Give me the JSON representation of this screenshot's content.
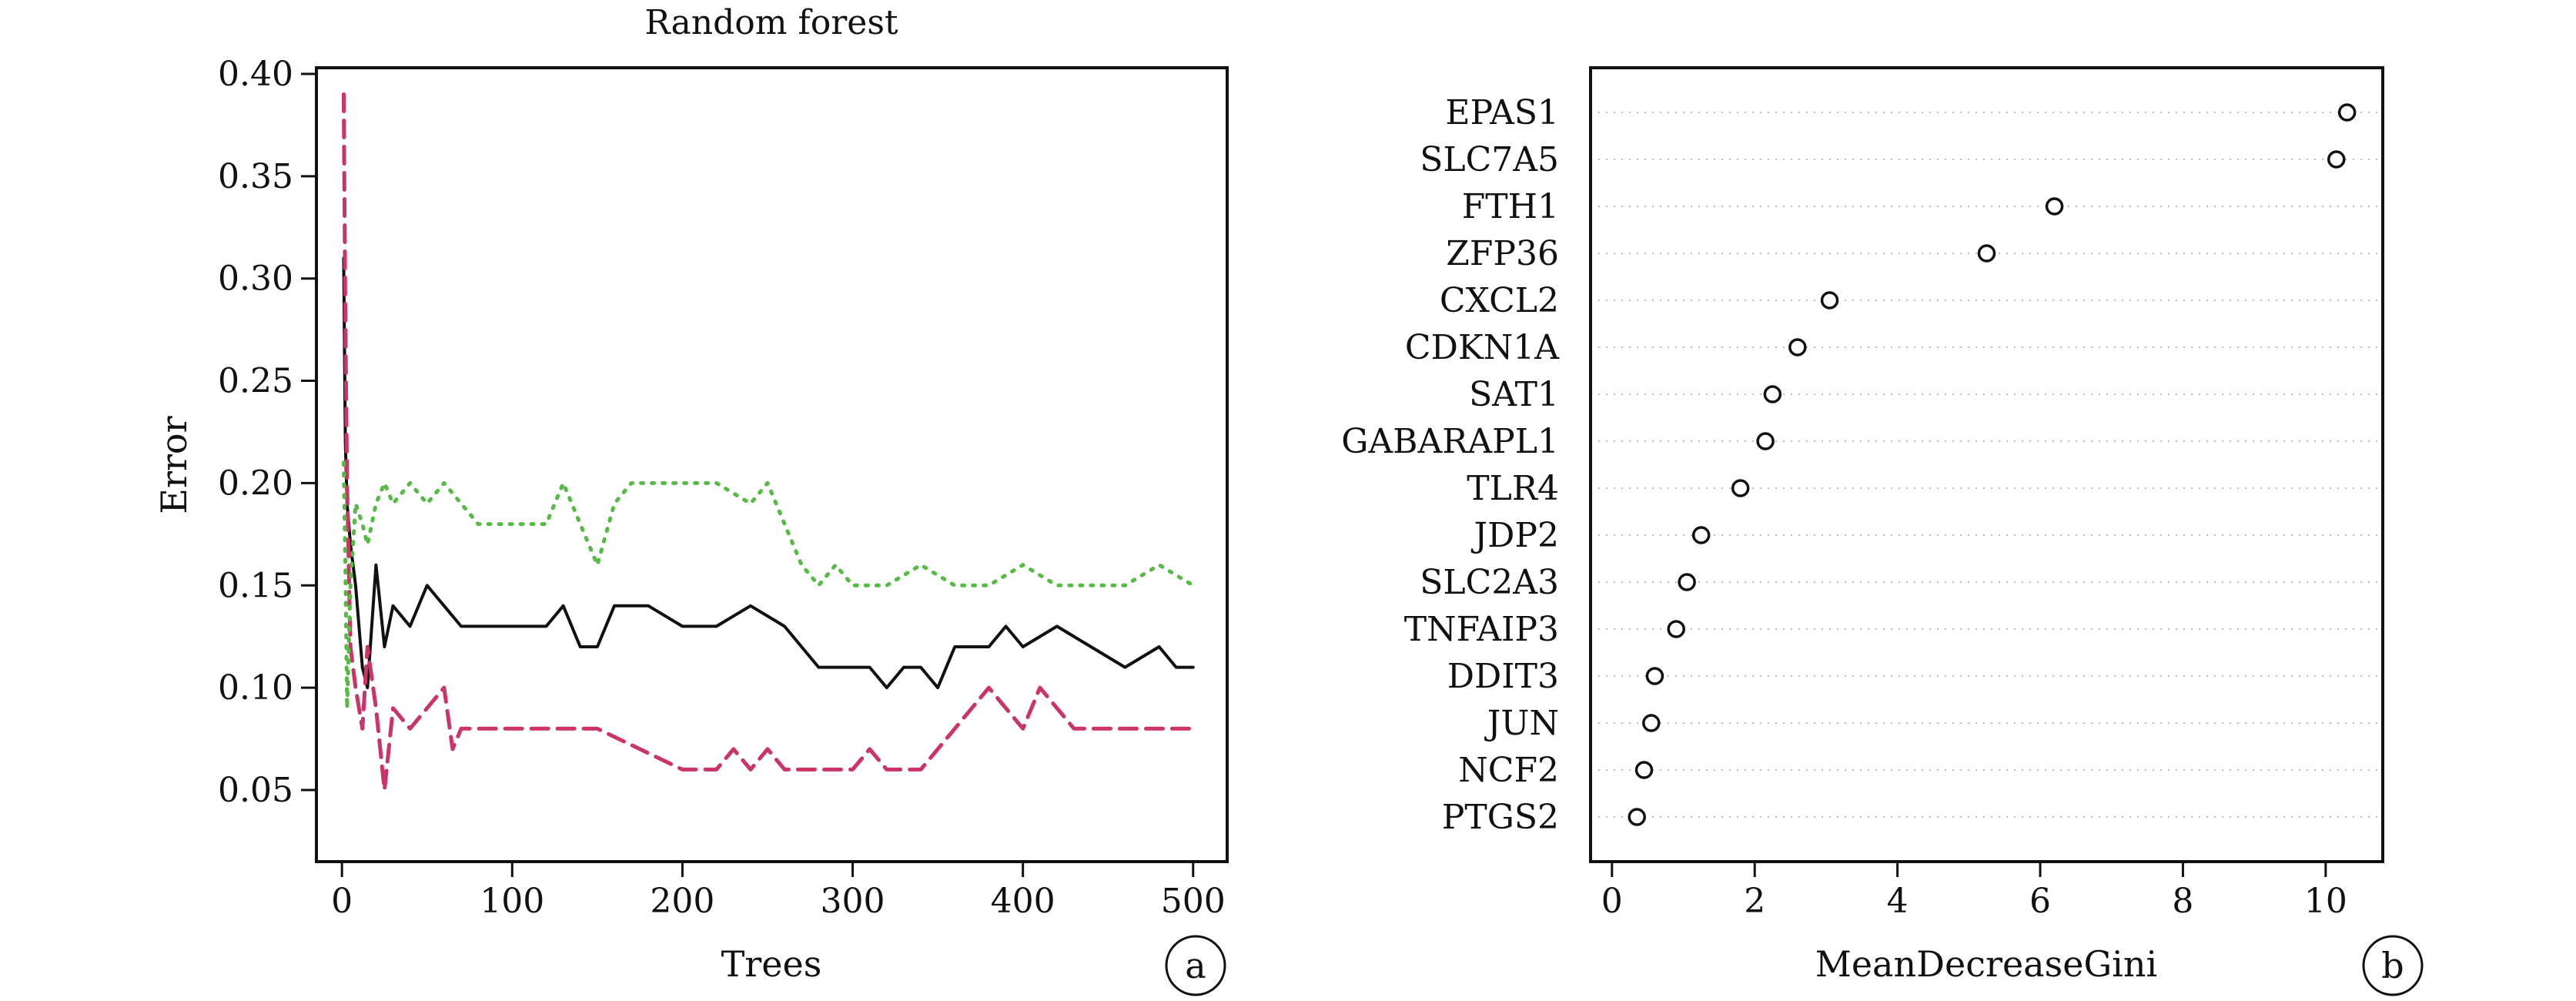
{
  "chart_data": [
    {
      "type": "line",
      "panel_label": "a",
      "title": "Random forest",
      "xlabel": "Trees",
      "ylabel": "Error",
      "xlim": [
        -15,
        520
      ],
      "ylim": [
        0.015,
        0.403
      ],
      "xticks": [
        0,
        100,
        200,
        300,
        400,
        500
      ],
      "yticks": [
        0.05,
        0.1,
        0.15,
        0.2,
        0.25,
        0.3,
        0.35,
        0.4
      ],
      "ytick_labels": [
        "0.05",
        "0.10",
        "0.15",
        "0.20",
        "0.25",
        "0.30",
        "0.35",
        "0.40"
      ],
      "grid": false,
      "series": [
        {
          "style": "solid",
          "color": "#111111",
          "x": [
            1,
            2,
            3,
            5,
            8,
            12,
            15,
            20,
            25,
            30,
            40,
            50,
            60,
            70,
            80,
            100,
            120,
            130,
            140,
            150,
            160,
            170,
            180,
            200,
            220,
            240,
            260,
            270,
            280,
            290,
            300,
            310,
            320,
            330,
            340,
            350,
            360,
            370,
            380,
            390,
            400,
            420,
            440,
            460,
            480,
            490,
            500
          ],
          "y": [
            0.31,
            0.22,
            0.19,
            0.17,
            0.15,
            0.11,
            0.1,
            0.16,
            0.12,
            0.14,
            0.13,
            0.15,
            0.14,
            0.13,
            0.13,
            0.13,
            0.13,
            0.14,
            0.12,
            0.12,
            0.14,
            0.14,
            0.14,
            0.13,
            0.13,
            0.14,
            0.13,
            0.12,
            0.11,
            0.11,
            0.11,
            0.11,
            0.1,
            0.11,
            0.11,
            0.1,
            0.12,
            0.12,
            0.12,
            0.13,
            0.12,
            0.13,
            0.12,
            0.11,
            0.12,
            0.11,
            0.11
          ]
        },
        {
          "style": "dashed",
          "color": "#cc3366",
          "x": [
            1,
            2,
            3,
            5,
            8,
            12,
            15,
            20,
            25,
            30,
            40,
            50,
            60,
            65,
            70,
            80,
            100,
            150,
            200,
            210,
            220,
            230,
            240,
            250,
            260,
            270,
            300,
            310,
            320,
            340,
            350,
            360,
            370,
            380,
            390,
            400,
            410,
            420,
            430,
            440,
            460,
            480,
            500
          ],
          "y": [
            0.39,
            0.28,
            0.2,
            0.12,
            0.1,
            0.08,
            0.12,
            0.09,
            0.05,
            0.09,
            0.08,
            0.09,
            0.1,
            0.07,
            0.08,
            0.08,
            0.08,
            0.08,
            0.06,
            0.06,
            0.06,
            0.07,
            0.06,
            0.07,
            0.06,
            0.06,
            0.06,
            0.07,
            0.06,
            0.06,
            0.07,
            0.08,
            0.09,
            0.1,
            0.09,
            0.08,
            0.1,
            0.09,
            0.08,
            0.08,
            0.08,
            0.08,
            0.08
          ]
        },
        {
          "style": "dotted",
          "color": "#55bb44",
          "x": [
            1,
            2,
            3,
            5,
            8,
            12,
            15,
            20,
            25,
            30,
            40,
            50,
            60,
            70,
            80,
            100,
            120,
            130,
            140,
            150,
            160,
            170,
            180,
            200,
            220,
            240,
            250,
            260,
            270,
            280,
            290,
            300,
            320,
            340,
            360,
            380,
            400,
            420,
            440,
            460,
            480,
            500
          ],
          "y": [
            0.21,
            0.16,
            0.09,
            0.15,
            0.19,
            0.18,
            0.17,
            0.19,
            0.2,
            0.19,
            0.2,
            0.19,
            0.2,
            0.19,
            0.18,
            0.18,
            0.18,
            0.2,
            0.18,
            0.16,
            0.19,
            0.2,
            0.2,
            0.2,
            0.2,
            0.19,
            0.2,
            0.18,
            0.16,
            0.15,
            0.16,
            0.15,
            0.15,
            0.16,
            0.15,
            0.15,
            0.16,
            0.15,
            0.15,
            0.15,
            0.16,
            0.15
          ]
        }
      ]
    },
    {
      "type": "scatter",
      "panel_label": "b",
      "xlabel": "MeanDecreaseGini",
      "xlim": [
        -0.3,
        10.8
      ],
      "xticks": [
        0,
        2,
        4,
        6,
        8,
        10
      ],
      "grid": "horizontal dotted",
      "categories": [
        "EPAS1",
        "SLC7A5",
        "FTH1",
        "ZFP36",
        "CXCL2",
        "CDKN1A",
        "SAT1",
        "GABARAPL1",
        "TLR4",
        "JDP2",
        "SLC2A3",
        "TNFAIP3",
        "DDIT3",
        "JUN",
        "NCF2",
        "PTGS2"
      ],
      "values": [
        10.3,
        10.15,
        6.2,
        5.25,
        3.05,
        2.6,
        2.25,
        2.15,
        1.8,
        1.25,
        1.05,
        0.9,
        0.6,
        0.55,
        0.45,
        0.35
      ]
    }
  ]
}
